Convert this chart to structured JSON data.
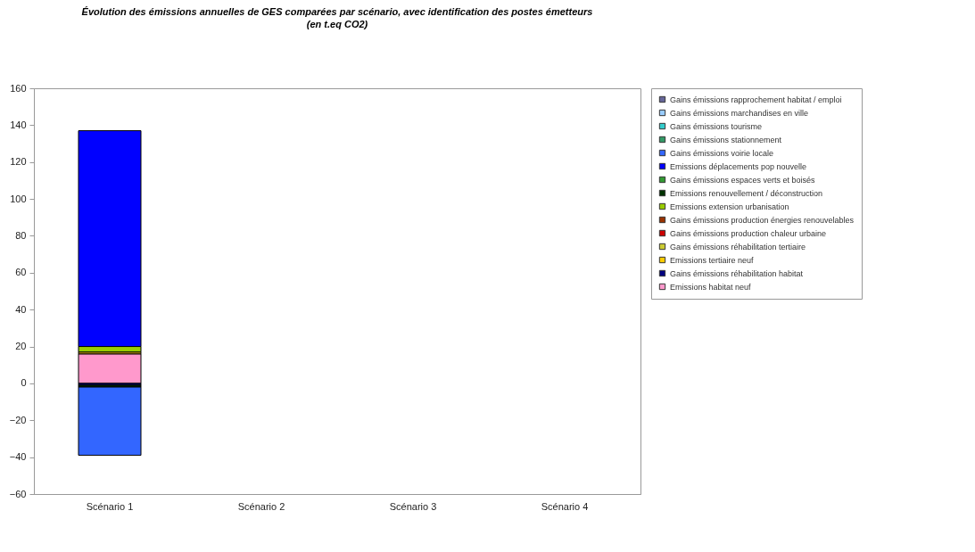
{
  "chart_data": {
    "type": "bar",
    "title": "Évolution des émissions annuelles de GES comparées par scénario, avec identification des postes émetteurs",
    "subtitle": "(en t.eq CO2)",
    "categories": [
      "Scénario 1",
      "Scénario 2",
      "Scénario 3",
      "Scénario 4"
    ],
    "stacked": true,
    "ylim": [
      -60,
      160
    ],
    "yticks": [
      -60,
      -40,
      -20,
      0,
      20,
      40,
      60,
      80,
      100,
      120,
      140,
      160
    ],
    "grid": false,
    "legend": "right",
    "series": [
      {
        "name": "Emissions habitat neuf",
        "color": "#ff99cc",
        "values": [
          16,
          null,
          null,
          null
        ]
      },
      {
        "name": "Gains émissions réhabilitation habitat",
        "color": "#000080",
        "values": [
          -1,
          null,
          null,
          null
        ]
      },
      {
        "name": "Emissions tertiaire neuf",
        "color": "#ffcc00",
        "values": [
          1,
          null,
          null,
          null
        ]
      },
      {
        "name": "Gains émissions réhabilitation tertiaire",
        "color": "#cccc33",
        "values": [
          null,
          null,
          null,
          null
        ]
      },
      {
        "name": "Gains émissions production chaleur urbaine",
        "color": "#cc0000",
        "values": [
          null,
          null,
          null,
          null
        ]
      },
      {
        "name": "Gains émissions production énergies renouvelables",
        "color": "#993300",
        "values": [
          null,
          null,
          null,
          null
        ]
      },
      {
        "name": "Emissions extension urbanisation",
        "color": "#99cc00",
        "values": [
          3,
          null,
          null,
          null
        ]
      },
      {
        "name": "Emissions renouvellement / déconstruction",
        "color": "#003300",
        "values": [
          -1,
          null,
          null,
          null
        ]
      },
      {
        "name": "Gains émissions espaces verts et boisés",
        "color": "#339933",
        "values": [
          null,
          null,
          null,
          null
        ]
      },
      {
        "name": "Emissions déplacements pop nouvelle",
        "color": "#0000ff",
        "values": [
          117,
          null,
          null,
          null
        ]
      },
      {
        "name": "Gains émissions voirie locale",
        "color": "#3366ff",
        "values": [
          -37,
          null,
          null,
          null
        ]
      },
      {
        "name": "Gains émissions stationnement",
        "color": "#339966",
        "values": [
          null,
          null,
          null,
          null
        ]
      },
      {
        "name": "Gains émissions tourisme",
        "color": "#33cccc",
        "values": [
          null,
          null,
          null,
          null
        ]
      },
      {
        "name": "Gains émissions marchandises en ville",
        "color": "#99ccff",
        "values": [
          null,
          null,
          null,
          null
        ]
      },
      {
        "name": "Gains émissions rapprochement habitat / emploi",
        "color": "#666699",
        "values": [
          null,
          null,
          null,
          null
        ]
      }
    ]
  }
}
